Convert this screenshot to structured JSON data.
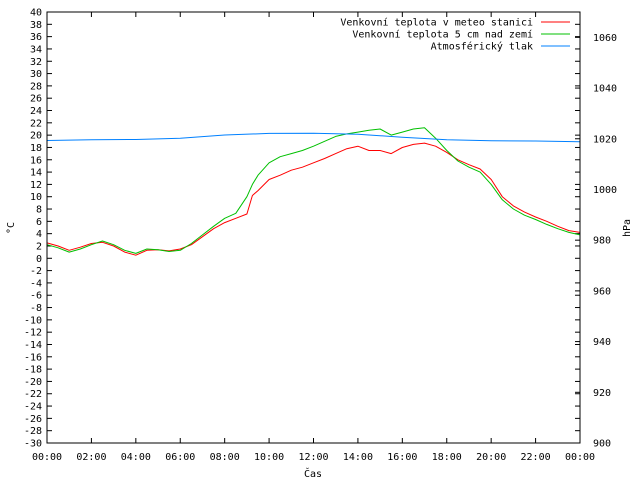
{
  "chart_data": {
    "type": "line",
    "xlabel": "Čas",
    "ylabel_left": "°C",
    "ylabel_right": "hPa",
    "x_ticks": [
      "00:00",
      "02:00",
      "04:00",
      "06:00",
      "08:00",
      "10:00",
      "12:00",
      "14:00",
      "16:00",
      "18:00",
      "20:00",
      "22:00",
      "00:00"
    ],
    "x_range_hours": [
      0,
      24
    ],
    "ylim_left": [
      -30,
      40
    ],
    "y_ticks_left": [
      -30,
      -28,
      -26,
      -24,
      -22,
      -20,
      -18,
      -16,
      -14,
      -12,
      -10,
      -8,
      -6,
      -4,
      -2,
      0,
      2,
      4,
      6,
      8,
      10,
      12,
      14,
      16,
      18,
      20,
      22,
      24,
      26,
      28,
      30,
      32,
      34,
      36,
      38,
      40
    ],
    "ylim_right": [
      900,
      1070
    ],
    "y_ticks_right": [
      900,
      920,
      940,
      960,
      980,
      1000,
      1020,
      1040,
      1060
    ],
    "legend_placement": "top-right",
    "grid": false,
    "series": [
      {
        "name": "Venkovní teplota v meteo stanici",
        "axis": "left",
        "color": "#ff0000",
        "x": [
          0,
          0.5,
          1,
          1.5,
          2,
          2.5,
          3,
          3.5,
          4,
          4.5,
          5,
          5.5,
          6,
          6.5,
          7,
          7.5,
          8,
          8.5,
          9,
          9.25,
          9.5,
          10,
          10.5,
          11,
          11.5,
          12,
          12.5,
          13,
          13.5,
          14,
          14.5,
          15,
          15.5,
          16,
          16.5,
          17,
          17.5,
          18,
          18.5,
          19,
          19.5,
          20,
          20.5,
          21,
          21.5,
          22,
          22.5,
          23,
          23.5,
          24
        ],
        "values": [
          2.5,
          2.0,
          1.3,
          1.8,
          2.4,
          2.6,
          2.0,
          1.0,
          0.5,
          1.3,
          1.4,
          1.2,
          1.5,
          2.2,
          3.5,
          4.8,
          5.8,
          6.5,
          7.2,
          10.2,
          11.0,
          12.8,
          13.5,
          14.3,
          14.8,
          15.5,
          16.2,
          17.0,
          17.8,
          18.2,
          17.5,
          17.5,
          17.0,
          18.0,
          18.5,
          18.7,
          18.2,
          17.2,
          16.0,
          15.2,
          14.5,
          12.8,
          10.0,
          8.5,
          7.5,
          6.7,
          6.0,
          5.2,
          4.5,
          4.2
        ]
      },
      {
        "name": "Venkovní teplota 5 cm nad zemí",
        "axis": "left",
        "color": "#00c000",
        "x": [
          0,
          0.5,
          1,
          1.5,
          2,
          2.5,
          3,
          3.5,
          4,
          4.5,
          5,
          5.5,
          6,
          6.5,
          7,
          7.5,
          8,
          8.5,
          9,
          9.25,
          9.5,
          10,
          10.5,
          11,
          11.5,
          12,
          12.5,
          13,
          13.5,
          14,
          14.5,
          15,
          15.5,
          16,
          16.5,
          17,
          17.5,
          18,
          18.5,
          19,
          19.5,
          20,
          20.5,
          21,
          21.5,
          22,
          22.5,
          23,
          23.5,
          24
        ],
        "values": [
          2.2,
          1.7,
          1.0,
          1.5,
          2.2,
          2.8,
          2.2,
          1.3,
          0.8,
          1.5,
          1.4,
          1.1,
          1.3,
          2.4,
          3.8,
          5.2,
          6.5,
          7.3,
          10.0,
          12.0,
          13.5,
          15.5,
          16.5,
          17.0,
          17.5,
          18.2,
          19.0,
          19.8,
          20.2,
          20.5,
          20.8,
          21.0,
          20.0,
          20.5,
          21.0,
          21.2,
          19.5,
          17.5,
          15.8,
          14.8,
          14.0,
          12.0,
          9.5,
          8.0,
          7.0,
          6.3,
          5.5,
          4.8,
          4.2,
          3.8
        ]
      },
      {
        "name": "Atmosférický tlak",
        "axis": "right",
        "color": "#0080ff",
        "x": [
          0,
          2,
          4,
          6,
          8,
          10,
          12,
          14,
          16,
          18,
          20,
          22,
          24
        ],
        "values": [
          1019.3,
          1019.6,
          1019.7,
          1020.2,
          1021.5,
          1022.1,
          1022.2,
          1021.8,
          1020.6,
          1019.6,
          1019.2,
          1019.1,
          1018.8
        ]
      }
    ]
  }
}
